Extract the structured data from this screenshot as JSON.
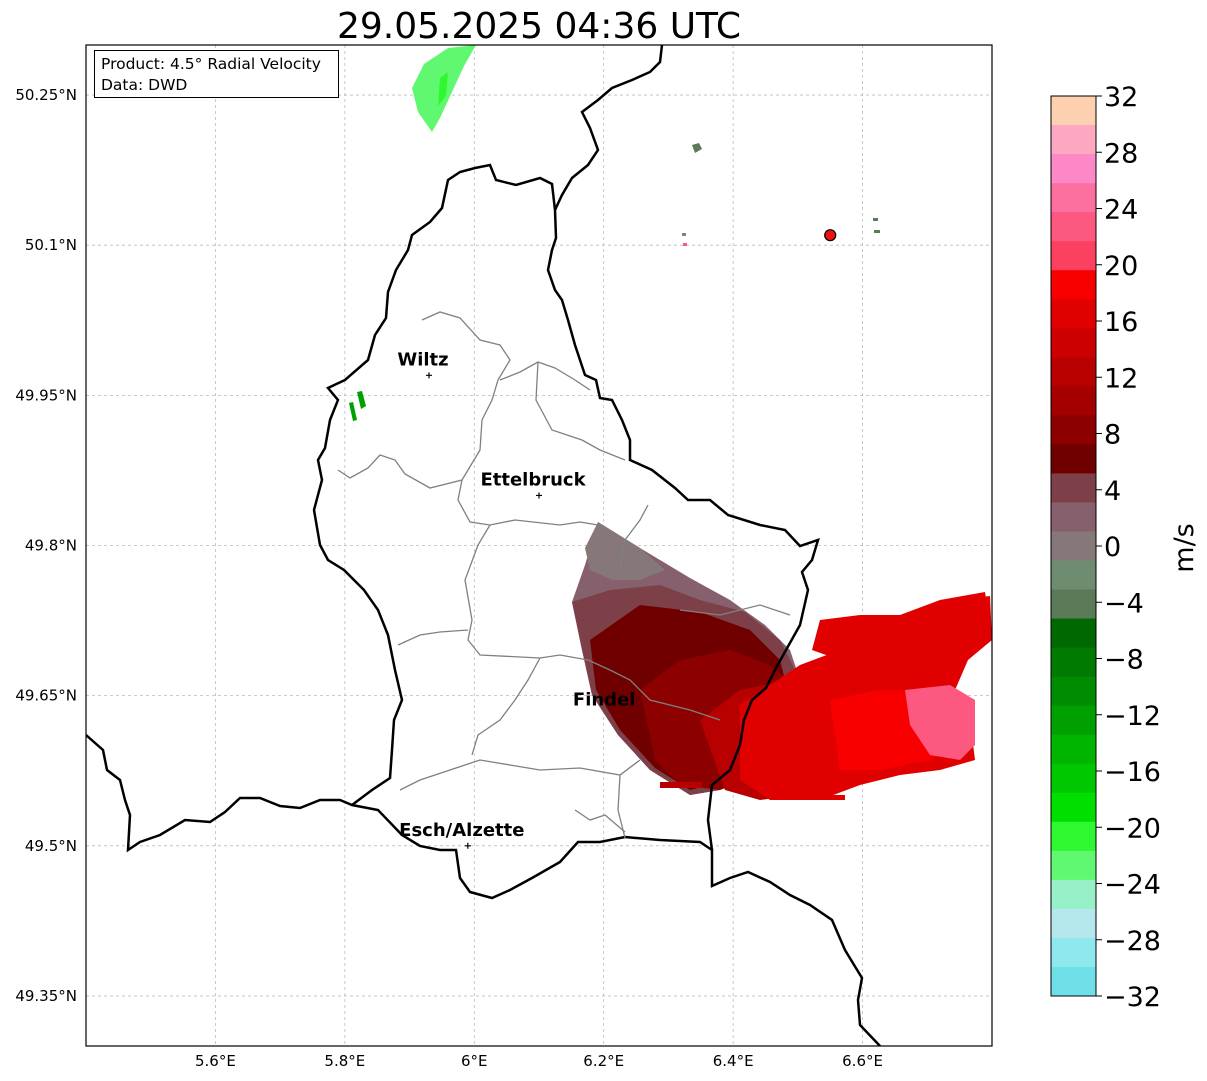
{
  "title": "29.05.2025 04:36 UTC",
  "info": {
    "product": "Product: 4.5° Radial Velocity",
    "source": "Data: DWD"
  },
  "map": {
    "lon_range": [
      5.4,
      6.8
    ],
    "lat_range": [
      49.3,
      50.3
    ],
    "lon_ticks": [
      "5.6°E",
      "5.8°E",
      "6°E",
      "6.2°E",
      "6.4°E",
      "6.6°E"
    ],
    "lat_ticks": [
      "50.25°N",
      "50.1°N",
      "49.95°N",
      "49.8°N",
      "49.65°N",
      "49.5°N",
      "49.35°N"
    ],
    "grid": true,
    "cities": [
      {
        "name": "Wiltz",
        "lon": 5.93,
        "lat": 49.97
      },
      {
        "name": "Ettelbruck",
        "lon": 6.1,
        "lat": 49.85
      },
      {
        "name": "Findel",
        "lon": 6.21,
        "lat": 49.63
      },
      {
        "name": "Esch/Alzette",
        "lon": 5.99,
        "lat": 49.5
      }
    ],
    "radar_site": {
      "lon": 6.55,
      "lat": 50.11,
      "color": "#ee1111"
    }
  },
  "colorbar": {
    "label": "m/s",
    "range": [
      -32,
      32
    ],
    "ticks": [
      "32",
      "28",
      "24",
      "20",
      "16",
      "12",
      "8",
      "4",
      "0",
      "−4",
      "−8",
      "−12",
      "−16",
      "−20",
      "−24",
      "−28",
      "−32"
    ],
    "colors_top_to_bottom": [
      "#fdd0b0",
      "#fda8c0",
      "#fc88c8",
      "#fc70a0",
      "#fc5880",
      "#fc4060",
      "#f80000",
      "#e00000",
      "#cc0000",
      "#b80000",
      "#a40000",
      "#8c0000",
      "#700000",
      "#7e4048",
      "#86606c",
      "#867878",
      "#6e8c70",
      "#5a7a58",
      "#006800",
      "#007a00",
      "#008c00",
      "#00a000",
      "#00b400",
      "#00c800",
      "#00e000",
      "#30f830",
      "#60f870",
      "#98f0c8",
      "#b4e8ec",
      "#8ee8ee",
      "#70e0e8"
    ]
  }
}
